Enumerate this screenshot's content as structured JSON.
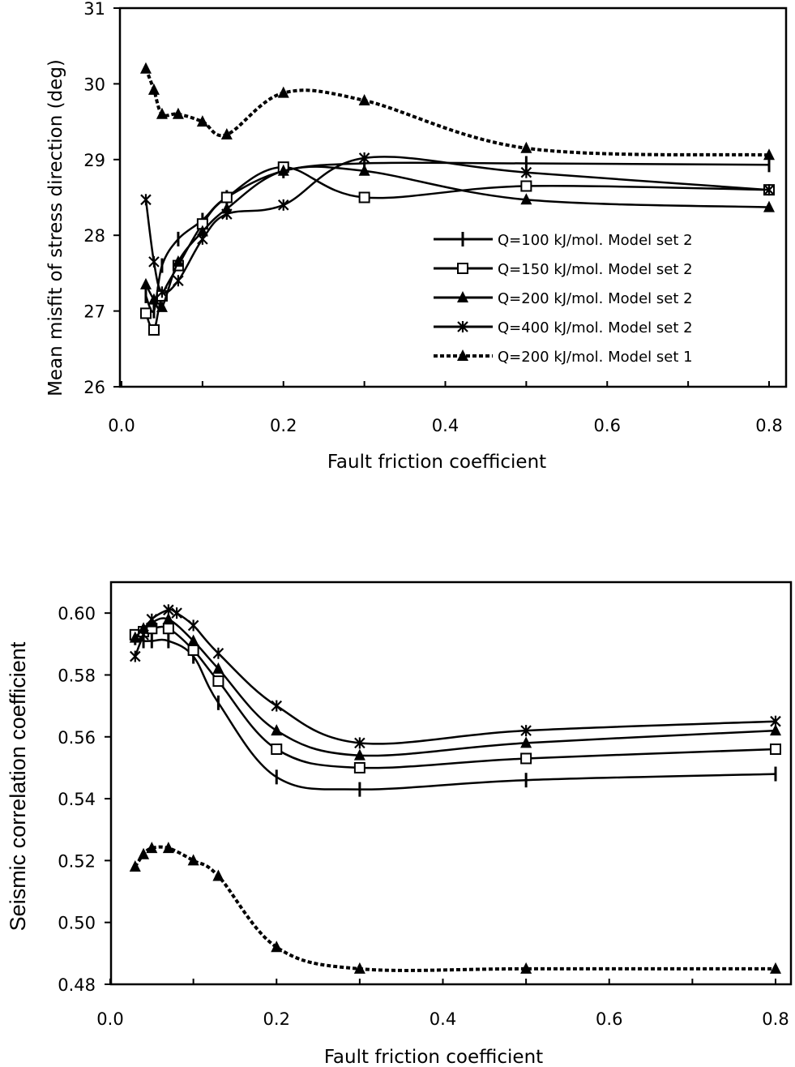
{
  "chart_data": [
    {
      "type": "line",
      "title": "",
      "xlabel": "Fault friction coefficient",
      "ylabel": "Mean misfit of stress direction (deg)",
      "xlim": [
        0.0,
        0.8
      ],
      "ylim": [
        26,
        31
      ],
      "x_ticks": [
        "0.0",
        "0.2",
        "0.4",
        "0.6",
        "0.8"
      ],
      "y_ticks": [
        "26",
        "27",
        "28",
        "29",
        "30",
        "31"
      ],
      "legend_position": "lower-right",
      "series": [
        {
          "name": "Q=100 kJ/mol. Model set 2",
          "marker": "tick",
          "dash": "solid",
          "x": [
            0.03,
            0.04,
            0.05,
            0.07,
            0.1,
            0.13,
            0.2,
            0.3,
            0.5,
            0.8
          ],
          "y": [
            27.2,
            27.0,
            27.6,
            27.95,
            28.2,
            28.5,
            28.85,
            28.95,
            28.95,
            28.93
          ]
        },
        {
          "name": "Q=150 kJ/mol. Model set 2",
          "marker": "square",
          "dash": "solid",
          "x": [
            0.03,
            0.04,
            0.05,
            0.07,
            0.1,
            0.13,
            0.2,
            0.3,
            0.5,
            0.8
          ],
          "y": [
            26.97,
            26.75,
            27.2,
            27.6,
            28.15,
            28.5,
            28.9,
            28.5,
            28.65,
            28.6
          ]
        },
        {
          "name": "Q=200 kJ/mol. Model set 2",
          "marker": "triangle",
          "dash": "solid",
          "x": [
            0.03,
            0.04,
            0.05,
            0.07,
            0.1,
            0.13,
            0.2,
            0.3,
            0.5,
            0.8
          ],
          "y": [
            27.35,
            27.15,
            27.05,
            27.65,
            28.05,
            28.35,
            28.85,
            28.85,
            28.47,
            28.37
          ]
        },
        {
          "name": "Q=400 kJ/mol. Model set 2",
          "marker": "star",
          "dash": "solid",
          "x": [
            0.03,
            0.04,
            0.05,
            0.07,
            0.1,
            0.13,
            0.2,
            0.3,
            0.5,
            0.8
          ],
          "y": [
            28.47,
            27.65,
            27.25,
            27.4,
            27.95,
            28.28,
            28.4,
            29.02,
            28.83,
            28.6
          ]
        },
        {
          "name": "Q=200 kJ/mol. Model set 1",
          "marker": "triangle",
          "dash": "dashed",
          "x": [
            0.03,
            0.04,
            0.05,
            0.07,
            0.1,
            0.13,
            0.2,
            0.3,
            0.5,
            0.8
          ],
          "y": [
            30.2,
            29.92,
            29.6,
            29.6,
            29.5,
            29.33,
            29.88,
            29.78,
            29.15,
            29.06
          ]
        }
      ]
    },
    {
      "type": "line",
      "title": "",
      "xlabel": "Fault friction coefficient",
      "ylabel": "Seismic correlation coefficient",
      "xlim": [
        0.0,
        0.8
      ],
      "ylim": [
        0.48,
        0.61
      ],
      "x_ticks": [
        "0.0",
        "0.2",
        "0.4",
        "0.6",
        "0.8"
      ],
      "y_ticks": [
        "0.48",
        "0.50",
        "0.52",
        "0.54",
        "0.56",
        "0.58",
        "0.60"
      ],
      "series": [
        {
          "name": "Q=100 kJ/mol. Model set 2",
          "marker": "tick",
          "dash": "solid",
          "x": [
            0.03,
            0.04,
            0.05,
            0.07,
            0.1,
            0.13,
            0.2,
            0.3,
            0.5,
            0.8
          ],
          "y": [
            0.592,
            0.591,
            0.591,
            0.591,
            0.586,
            0.571,
            0.547,
            0.543,
            0.546,
            0.548
          ]
        },
        {
          "name": "Q=150 kJ/mol. Model set 2",
          "marker": "square",
          "dash": "solid",
          "x": [
            0.03,
            0.04,
            0.05,
            0.07,
            0.1,
            0.13,
            0.2,
            0.3,
            0.5,
            0.8
          ],
          "y": [
            0.593,
            0.594,
            0.595,
            0.595,
            0.588,
            0.578,
            0.556,
            0.55,
            0.553,
            0.556
          ]
        },
        {
          "name": "Q=200 kJ/mol. Model set 2",
          "marker": "triangle",
          "dash": "solid",
          "x": [
            0.03,
            0.04,
            0.05,
            0.07,
            0.1,
            0.13,
            0.2,
            0.3,
            0.5,
            0.8
          ],
          "y": [
            0.592,
            0.595,
            0.597,
            0.598,
            0.591,
            0.582,
            0.562,
            0.554,
            0.558,
            0.562
          ]
        },
        {
          "name": "Q=400 kJ/mol. Model set 2",
          "marker": "star",
          "dash": "solid",
          "x": [
            0.03,
            0.04,
            0.05,
            0.07,
            0.08,
            0.1,
            0.13,
            0.2,
            0.3,
            0.5,
            0.8
          ],
          "y": [
            0.586,
            0.593,
            0.598,
            0.601,
            0.6,
            0.596,
            0.587,
            0.57,
            0.558,
            0.562,
            0.565
          ]
        },
        {
          "name": "Q=200 kJ/mol. Model set 1",
          "marker": "triangle",
          "dash": "dashed",
          "x": [
            0.03,
            0.04,
            0.05,
            0.07,
            0.1,
            0.13,
            0.2,
            0.3,
            0.5,
            0.8
          ],
          "y": [
            0.518,
            0.522,
            0.524,
            0.524,
            0.52,
            0.515,
            0.492,
            0.485,
            0.485,
            0.485
          ]
        }
      ]
    }
  ]
}
